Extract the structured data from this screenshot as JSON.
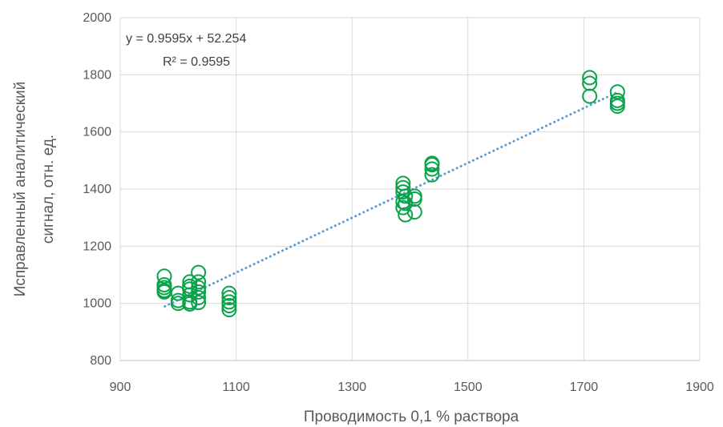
{
  "chart_data": {
    "type": "scatter",
    "title": "",
    "xlabel": "Проводимость 0,1 % раствора",
    "ylabel_lines": [
      "Исправленный аналитический",
      "сигнал, отн. ед."
    ],
    "xlim": [
      900,
      1900
    ],
    "ylim": [
      800,
      2000
    ],
    "xticks": [
      900,
      1100,
      1300,
      1500,
      1700,
      1900
    ],
    "yticks": [
      800,
      1000,
      1200,
      1400,
      1600,
      1800,
      2000
    ],
    "grid": true,
    "legend": "none",
    "colors": {
      "points": "#0aa24a",
      "trendline": "#5b9bd5",
      "grid": "#d9d9d9",
      "axis": "#bfbfbf"
    },
    "trendline": {
      "type": "linear",
      "style": "dotted",
      "slope": 0.9595,
      "intercept": 52.254,
      "x_range": [
        977,
        1760
      ],
      "equation": "y = 0.9595x + 52.254",
      "r2_label": "R² = 0.9595"
    },
    "series": [
      {
        "points": [
          [
            976,
            1095
          ],
          [
            976,
            1065
          ],
          [
            976,
            1055
          ],
          [
            976,
            1045
          ],
          [
            976,
            1040
          ],
          [
            1000,
            1035
          ],
          [
            1000,
            1010
          ],
          [
            1000,
            1000
          ],
          [
            1020,
            1075
          ],
          [
            1020,
            1060
          ],
          [
            1020,
            1050
          ],
          [
            1020,
            1030
          ],
          [
            1020,
            1005
          ],
          [
            1020,
            998
          ],
          [
            1035,
            1108
          ],
          [
            1035,
            1075
          ],
          [
            1035,
            1055
          ],
          [
            1035,
            1040
          ],
          [
            1035,
            1020
          ],
          [
            1035,
            1003
          ],
          [
            1088,
            1035
          ],
          [
            1088,
            1020
          ],
          [
            1088,
            1005
          ],
          [
            1088,
            992
          ],
          [
            1088,
            978
          ],
          [
            1388,
            1420
          ],
          [
            1388,
            1405
          ],
          [
            1388,
            1390
          ],
          [
            1388,
            1355
          ],
          [
            1388,
            1335
          ],
          [
            1392,
            1310
          ],
          [
            1392,
            1350
          ],
          [
            1392,
            1375
          ],
          [
            1408,
            1375
          ],
          [
            1408,
            1365
          ],
          [
            1408,
            1320
          ],
          [
            1438,
            1490
          ],
          [
            1438,
            1485
          ],
          [
            1438,
            1470
          ],
          [
            1438,
            1450
          ],
          [
            1710,
            1790
          ],
          [
            1710,
            1770
          ],
          [
            1710,
            1725
          ],
          [
            1758,
            1740
          ],
          [
            1758,
            1710
          ],
          [
            1758,
            1700
          ],
          [
            1758,
            1690
          ]
        ]
      }
    ]
  }
}
